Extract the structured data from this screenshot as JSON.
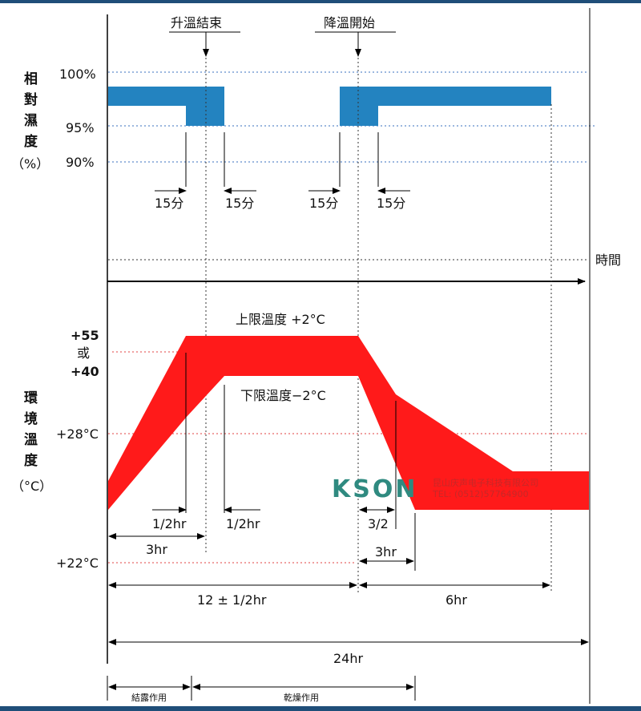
{
  "humidity_axis": {
    "title_chars": [
      "相",
      "對",
      "濕",
      "度"
    ],
    "unit": "（%）",
    "ticks": [
      "100%",
      "95%",
      "90%"
    ]
  },
  "humidity_annotations": {
    "ramp_up_end": "升溫結束",
    "ramp_down_start": "降溫開始",
    "fifteen_min": "15分"
  },
  "time_label": "時間",
  "temperature_axis": {
    "title_chars": [
      "環",
      "境",
      "溫",
      "度"
    ],
    "unit": "（°C）",
    "tick_high_a": "+55",
    "tick_high_or": "或",
    "tick_high_b": "+40",
    "tick_28": "+28°C",
    "tick_22": "+22°C"
  },
  "temperature_annotations": {
    "upper_limit": "上限溫度  +2°C",
    "lower_limit": "下限溫度−2°C"
  },
  "durations": {
    "half_hr": "1/2hr",
    "three_hr": "3hr",
    "three_half": "3/2",
    "main_period": "12 ± 1/2hr",
    "six_hr": "6hr",
    "total": "24hr",
    "condensation": "結露作用",
    "drying": "乾燥作用"
  },
  "watermark": {
    "brand": "KSON",
    "company": "昆山庆声电子科技有限公司",
    "tel": "TEL: (0512)57764900"
  },
  "colors": {
    "humidity_band": "#2383c0",
    "temperature_band": "#ff1a1a",
    "blue_dotted": "#3a6fbf",
    "red_dotted": "#e04040",
    "frame": "#1f4e79"
  }
}
